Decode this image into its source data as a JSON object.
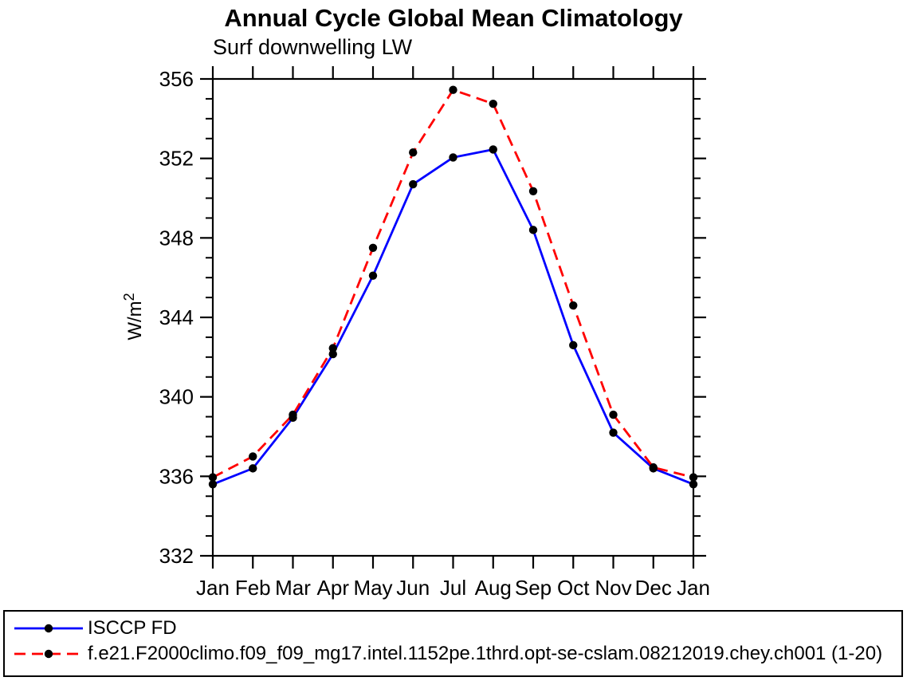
{
  "chart_data": {
    "type": "line",
    "title": "Annual Cycle Global Mean Climatology",
    "subtitle": "Surf downwelling LW",
    "ylabel": "W/m²",
    "xlabel": "",
    "x_categories": [
      "Jan",
      "Feb",
      "Mar",
      "Apr",
      "May",
      "Jun",
      "Jul",
      "Aug",
      "Sep",
      "Oct",
      "Nov",
      "Dec",
      "Jan"
    ],
    "y_ticks": [
      332,
      336,
      340,
      344,
      348,
      352,
      356
    ],
    "y_minor_step": 1,
    "ylim": [
      332,
      356
    ],
    "grid": "off",
    "legend_position": "bottom",
    "frame_color": "#000000",
    "marker_color": "#000000",
    "series": [
      {
        "name": "ISCCP FD",
        "color": "#0000ff",
        "style": "solid",
        "marker": "circle",
        "values": [
          335.6,
          336.4,
          338.95,
          342.15,
          346.1,
          350.7,
          352.05,
          352.45,
          348.4,
          342.6,
          338.2,
          336.4,
          335.6
        ]
      },
      {
        "name": "f.e21.F2000climo.f09_f09_mg17.intel.1152pe.1thrd.opt-se-cslam.08212019.chey.ch001 (1-20)",
        "color": "#ff0000",
        "style": "dashed",
        "marker": "circle",
        "values": [
          335.95,
          337.0,
          339.1,
          342.45,
          347.5,
          352.3,
          355.45,
          354.75,
          350.35,
          344.6,
          339.1,
          336.45,
          335.95
        ]
      }
    ]
  }
}
